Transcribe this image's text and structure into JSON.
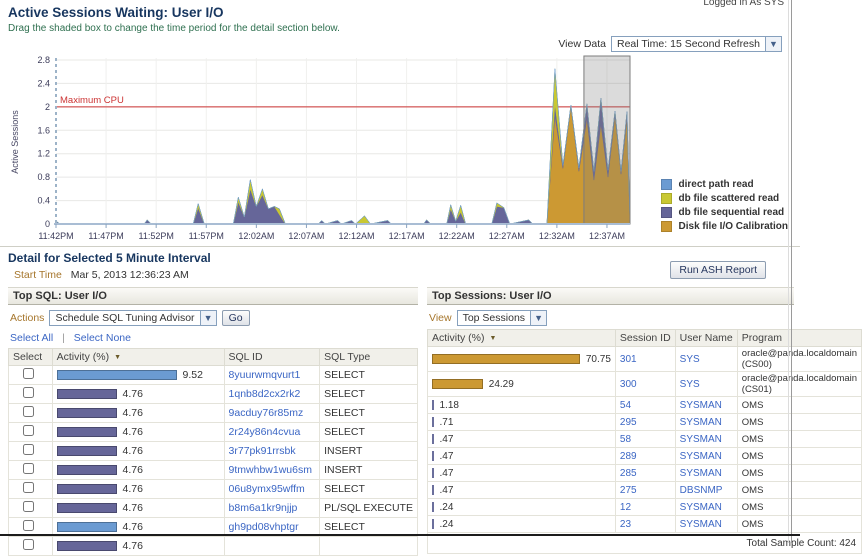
{
  "header": {
    "logged_in": "Logged in As SYS",
    "title": "Active Sessions Waiting: User I/O",
    "subtitle": "Drag the shaded box to change the time period for the detail section below.",
    "view_data_label": "View Data",
    "view_data_value": "Real Time: 15 Second Refresh"
  },
  "chart_data": {
    "type": "area",
    "stacked": true,
    "title": "Active Sessions Waiting: User I/O",
    "ylabel": "Active Sessions",
    "xlabel": "",
    "ylim": [
      0,
      2.8
    ],
    "y_ticks": [
      "0",
      "0.4",
      "0.8",
      "1.2",
      "1.6",
      "2",
      "2.4",
      "2.8"
    ],
    "x_ticks": [
      "11:42PM",
      "11:47PM",
      "11:52PM",
      "11:57PM",
      "12:02AM",
      "12:07AM",
      "12:12AM",
      "12:17AM",
      "12:22AM",
      "12:27AM",
      "12:32AM",
      "12:37AM"
    ],
    "x_tick_interval_minutes": 5,
    "grid": true,
    "legend_position": "right-bottom",
    "max_cpu": {
      "value": 2,
      "label": "Maximum CPU",
      "color": "#cc3333"
    },
    "legend": [
      {
        "name": "direct path read",
        "color": "#6b9bd2"
      },
      {
        "name": "db file scattered read",
        "color": "#c9c832"
      },
      {
        "name": "db file sequential read",
        "color": "#666699"
      },
      {
        "name": "Disk file I/O Calibration",
        "color": "#cc9933"
      }
    ],
    "series_order_bottom_to_top": [
      "Disk file I/O Calibration",
      "db file sequential read",
      "db file scattered read",
      "direct path read"
    ],
    "selection_minutes": {
      "from": 52.7,
      "to": 57.3
    },
    "points_columns": [
      "minutes_from_start",
      "Disk file I/O Calibration",
      "db file sequential read",
      "db file scattered read",
      "direct path read"
    ],
    "points": [
      [
        0,
        0,
        0.05,
        0,
        0
      ],
      [
        0.4,
        0,
        0,
        0,
        0
      ],
      [
        8.8,
        0,
        0,
        0,
        0
      ],
      [
        9.1,
        0,
        0.07,
        0,
        0
      ],
      [
        9.5,
        0,
        0,
        0,
        0
      ],
      [
        13.7,
        0,
        0,
        0,
        0
      ],
      [
        14.2,
        0,
        0.28,
        0.07,
        0
      ],
      [
        14.8,
        0,
        0,
        0,
        0
      ],
      [
        17.7,
        0,
        0,
        0,
        0
      ],
      [
        18.2,
        0,
        0.38,
        0.08,
        0
      ],
      [
        18.8,
        0,
        0.12,
        0,
        0
      ],
      [
        19.4,
        0,
        0.6,
        0.16,
        0
      ],
      [
        20,
        0,
        0.3,
        0,
        0
      ],
      [
        20.6,
        0,
        0.5,
        0.1,
        0
      ],
      [
        21.2,
        0,
        0.26,
        0,
        0
      ],
      [
        21.8,
        0,
        0.3,
        0,
        0
      ],
      [
        22.3,
        0,
        0.16,
        0.1,
        0
      ],
      [
        22.9,
        0,
        0,
        0,
        0
      ],
      [
        26.2,
        0,
        0,
        0,
        0
      ],
      [
        26.5,
        0,
        0.06,
        0,
        0
      ],
      [
        26.9,
        0,
        0,
        0,
        0
      ],
      [
        28.1,
        0,
        0.06,
        0,
        0
      ],
      [
        28.5,
        0,
        0,
        0,
        0
      ],
      [
        29.5,
        0,
        0.06,
        0,
        0
      ],
      [
        29.9,
        0,
        0,
        0,
        0
      ],
      [
        30.8,
        0,
        0.02,
        0.12,
        0
      ],
      [
        31.4,
        0,
        0,
        0,
        0
      ],
      [
        33.1,
        0,
        0.06,
        0,
        0
      ],
      [
        33.5,
        0,
        0,
        0,
        0
      ],
      [
        36.7,
        0,
        0,
        0,
        0
      ],
      [
        37,
        0,
        0.07,
        0,
        0
      ],
      [
        37.4,
        0,
        0,
        0,
        0
      ],
      [
        39,
        0,
        0,
        0,
        0
      ],
      [
        39.4,
        0,
        0.26,
        0.07,
        0
      ],
      [
        39.9,
        0,
        0.05,
        0,
        0
      ],
      [
        40.4,
        0,
        0.2,
        0.12,
        0
      ],
      [
        40.9,
        0,
        0,
        0,
        0
      ],
      [
        43.5,
        0,
        0,
        0,
        0
      ],
      [
        44,
        0,
        0.3,
        0.06,
        0
      ],
      [
        44.7,
        0,
        0.28,
        0,
        0
      ],
      [
        45.3,
        0,
        0,
        0,
        0
      ],
      [
        47.2,
        0,
        0.07,
        0,
        0
      ],
      [
        47.6,
        0,
        0,
        0,
        0
      ],
      [
        49,
        0,
        0,
        0,
        0
      ],
      [
        49.8,
        1.85,
        0.2,
        0.6,
        0
      ],
      [
        50.6,
        0.95,
        0.05,
        0,
        0
      ],
      [
        51.4,
        2.0,
        0.03,
        0,
        0
      ],
      [
        52.2,
        0.9,
        0.06,
        0,
        0
      ],
      [
        53,
        1.8,
        0.25,
        0,
        0
      ],
      [
        53.7,
        0.75,
        0.15,
        0,
        0
      ],
      [
        54.4,
        1.7,
        0.45,
        0,
        0
      ],
      [
        55.1,
        0.8,
        0.12,
        0,
        0
      ],
      [
        55.8,
        1.85,
        0.08,
        0,
        0
      ],
      [
        56.4,
        0.85,
        0.05,
        0,
        0
      ],
      [
        57,
        1.8,
        0.12,
        0,
        0
      ],
      [
        57.3,
        0,
        0,
        0,
        0
      ]
    ]
  },
  "detail": {
    "title": "Detail for Selected 5 Minute Interval",
    "start_time_label": "Start Time",
    "start_time_value": "Mar 5, 2013 12:36:23 AM",
    "run_ash_report_label": "Run ASH Report"
  },
  "top_sql": {
    "title": "Top SQL: User I/O",
    "actions_label": "Actions",
    "actions_value": "Schedule SQL Tuning Advisor",
    "go_label": "Go",
    "select_all": "Select All",
    "select_none": "Select None",
    "columns": [
      "Select",
      "Activity (%)",
      "SQL ID",
      "SQL Type"
    ],
    "sorted_column": "Activity (%)",
    "rows": [
      {
        "activity": "9.52",
        "bar": "blue",
        "sql_id": "8yuurwmqvurt1",
        "sql_type": "SELECT"
      },
      {
        "activity": "4.76",
        "bar": "purple",
        "sql_id": "1qnb8d2cx2rk2",
        "sql_type": "SELECT"
      },
      {
        "activity": "4.76",
        "bar": "purple",
        "sql_id": "9acduy76r85mz",
        "sql_type": "SELECT"
      },
      {
        "activity": "4.76",
        "bar": "purple",
        "sql_id": "2r24y86n4cvua",
        "sql_type": "SELECT"
      },
      {
        "activity": "4.76",
        "bar": "purple",
        "sql_id": "3r77pk91rrsbk",
        "sql_type": "INSERT"
      },
      {
        "activity": "4.76",
        "bar": "purple",
        "sql_id": "9tmwhbw1wu6sm",
        "sql_type": "INSERT"
      },
      {
        "activity": "4.76",
        "bar": "purple",
        "sql_id": "06u8ymx95wffm",
        "sql_type": "SELECT"
      },
      {
        "activity": "4.76",
        "bar": "purple",
        "sql_id": "b8m6a1kr9njjp",
        "sql_type": "PL/SQL EXECUTE"
      },
      {
        "activity": "4.76",
        "bar": "blue",
        "sql_id": "gh9pd08vhptgr",
        "sql_type": "SELECT"
      },
      {
        "activity": "4.76",
        "bar": "purple",
        "sql_id": "",
        "sql_type": ""
      }
    ]
  },
  "top_sessions": {
    "title": "Top Sessions: User I/O",
    "view_label": "View",
    "view_value": "Top Sessions",
    "columns": [
      "Activity (%)",
      "Session ID",
      "User Name",
      "Program"
    ],
    "sorted_column": "Activity (%)",
    "rows": [
      {
        "activity": "70.75",
        "session_id": "301",
        "user": "SYS",
        "program": "oracle@panda.localdomain (CS00)"
      },
      {
        "activity": "24.29",
        "session_id": "300",
        "user": "SYS",
        "program": "oracle@panda.localdomain (CS01)"
      },
      {
        "activity": "1.18",
        "session_id": "54",
        "user": "SYSMAN",
        "program": "OMS"
      },
      {
        "activity": ".71",
        "session_id": "295",
        "user": "SYSMAN",
        "program": "OMS"
      },
      {
        "activity": ".47",
        "session_id": "58",
        "user": "SYSMAN",
        "program": "OMS"
      },
      {
        "activity": ".47",
        "session_id": "289",
        "user": "SYSMAN",
        "program": "OMS"
      },
      {
        "activity": ".47",
        "session_id": "285",
        "user": "SYSMAN",
        "program": "OMS"
      },
      {
        "activity": ".47",
        "session_id": "275",
        "user": "DBSNMP",
        "program": "OMS"
      },
      {
        "activity": ".24",
        "session_id": "12",
        "user": "SYSMAN",
        "program": "OMS"
      },
      {
        "activity": ".24",
        "session_id": "23",
        "user": "SYSMAN",
        "program": "OMS"
      }
    ],
    "footer": "Total Sample Count: 424"
  },
  "colors": {
    "bar_blue": "#6b9bd2",
    "bar_purple": "#666699",
    "bar_orange": "#cc9933",
    "tiny_bar": "#6b6f9c",
    "link": "#3b66c4",
    "title_navy": "#17365f",
    "gold_label": "#a6762c",
    "max_cpu_red": "#cc3333"
  }
}
